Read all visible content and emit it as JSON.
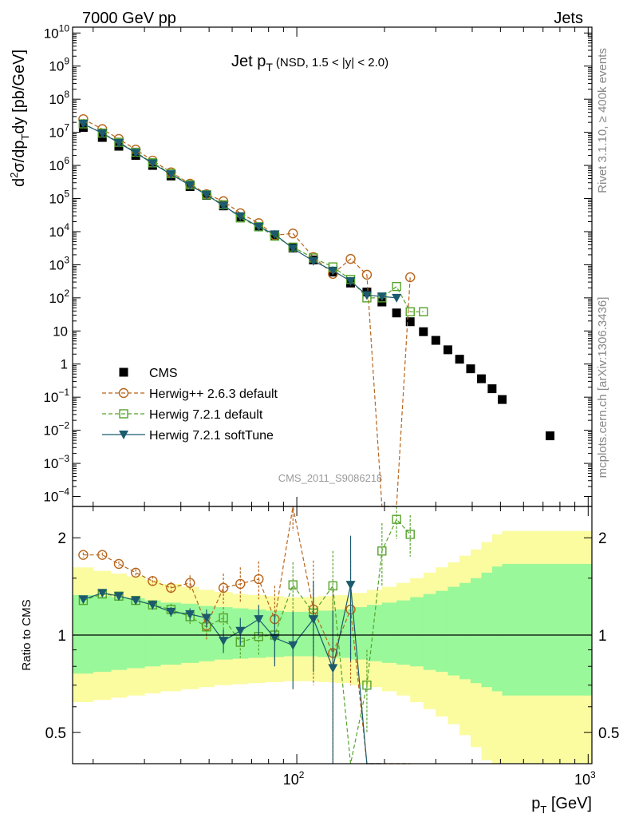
{
  "header": {
    "energy_label": "7000 GeV pp",
    "group_label": "Jets"
  },
  "side_labels": {
    "rivet": "Rivet 3.1.10, ≥ 400k events",
    "mcplots": "mcplots.cern.ch [arXiv:1306.3436]"
  },
  "watermark": "CMS_2011_S9086218",
  "chart_data": [
    {
      "type": "line",
      "panel": "main",
      "title_main": "Jet p",
      "title_sub": "T",
      "title_extra": "(NSD, 1.5 < |y| < 2.0)",
      "ylabel": "d²σ/dp_T dy [pb/GeV]",
      "xlabel": "p_T [GeV]",
      "xscale": "log",
      "yscale": "log",
      "xlim": [
        17,
        1030
      ],
      "ylim": [
        5e-05,
        15000000000
      ],
      "y_ticks": [
        {
          "v": 10000000000.0,
          "m": "10",
          "e": "10"
        },
        {
          "v": 1000000000.0,
          "m": "10",
          "e": "9"
        },
        {
          "v": 100000000.0,
          "m": "10",
          "e": "8"
        },
        {
          "v": 10000000.0,
          "m": "10",
          "e": "7"
        },
        {
          "v": 1000000.0,
          "m": "10",
          "e": "6"
        },
        {
          "v": 100000.0,
          "m": "10",
          "e": "5"
        },
        {
          "v": 10000.0,
          "m": "10",
          "e": "4"
        },
        {
          "v": 1000.0,
          "m": "10",
          "e": "3"
        },
        {
          "v": 100.0,
          "m": "10",
          "e": "2"
        },
        {
          "v": 10,
          "m": "10",
          "e": ""
        },
        {
          "v": 1,
          "m": "1",
          "e": ""
        },
        {
          "v": 0.1,
          "m": "10",
          "e": "−1"
        },
        {
          "v": 0.01,
          "m": "10",
          "e": "−2"
        },
        {
          "v": 0.001,
          "m": "10",
          "e": "−3"
        },
        {
          "v": 0.0001,
          "m": "10",
          "e": "−4"
        }
      ],
      "legend": {
        "placement": "lower-left",
        "entries": [
          {
            "label": "CMS",
            "series": "CMS"
          },
          {
            "label": "Herwig++ 2.6.3 default",
            "series": "Herwig++ 2.6.3 default"
          },
          {
            "label": "Herwig 7.2.1 default",
            "series": "Herwig 7.2.1 default"
          },
          {
            "label": "Herwig 7.2.1 softTune",
            "series": "Herwig 7.2.1 softTune"
          }
        ]
      },
      "series": [
        {
          "name": "CMS",
          "color": "#000000",
          "marker": "square-filled",
          "line": "none",
          "x": [
            18.5,
            21.5,
            24.5,
            28,
            32,
            37,
            43,
            49,
            56,
            64,
            74,
            84,
            97,
            114,
            133,
            153,
            174,
            196,
            220,
            245,
            272,
            300,
            330,
            362,
            395,
            430,
            468,
            507,
            740
          ],
          "y": [
            14000000.0,
            7000000.0,
            3800000.0,
            2000000.0,
            1000000.0,
            480000.0,
            230000.0,
            125000.0,
            60000.0,
            28000.0,
            14000.0,
            7500.0,
            3200.0,
            1400.0,
            600.0,
            280.0,
            150.0,
            75,
            35,
            19,
            9.5,
            5.2,
            2.7,
            1.4,
            0.72,
            0.36,
            0.18,
            0.085,
            0.0068
          ]
        },
        {
          "name": "Herwig++ 2.6.3 default",
          "color": "#b8651b",
          "marker": "circle-open",
          "line": "dashed",
          "x": [
            18.5,
            21.5,
            24.5,
            28,
            32,
            37,
            43,
            49,
            56,
            64,
            74,
            84,
            97,
            114,
            133,
            153,
            174,
            196,
            220,
            245
          ],
          "y": [
            25000000.0,
            12500000.0,
            6300000.0,
            3000000.0,
            1400000.0,
            620000.0,
            280000.0,
            135000.0,
            83000.0,
            36000.0,
            18000.0,
            7800.0,
            8800.0,
            1700.0,
            530.0,
            1500.0,
            500.0,
            0,
            0,
            420.0
          ]
        },
        {
          "name": "Herwig 7.2.1 default",
          "color": "#55a32a",
          "marker": "square-open",
          "line": "dashed",
          "x": [
            18.5,
            21.5,
            24.5,
            28,
            32,
            37,
            43,
            49,
            56,
            64,
            74,
            84,
            97,
            114,
            133,
            153,
            174,
            196,
            220,
            245,
            272
          ],
          "y": [
            18000000.0,
            9500000.0,
            5000000.0,
            2500000.0,
            1200000.0,
            570000.0,
            260000.0,
            130000.0,
            65000.0,
            26000.0,
            14000.0,
            7300.0,
            3400.0,
            1600.0,
            860.0,
            360.0,
            100.0,
            100.0,
            220.0,
            38,
            38
          ]
        },
        {
          "name": "Herwig 7.2.1 softTune",
          "color": "#1c5a6e",
          "marker": "triangle-down-filled",
          "line": "solid",
          "x": [
            18.5,
            21.5,
            24.5,
            28,
            32,
            37,
            43,
            49,
            56,
            64,
            74,
            84,
            97,
            114,
            133,
            153,
            174,
            196,
            220
          ],
          "y": [
            18000000.0,
            9300000.0,
            4800000.0,
            2400000.0,
            1150000.0,
            540000.0,
            250000.0,
            130000.0,
            60000.0,
            29000.0,
            14000.0,
            8300.0,
            3100.0,
            1300.0,
            660.0,
            320.0,
            120.0,
            110.0,
            100.0
          ]
        }
      ]
    },
    {
      "type": "line",
      "panel": "ratio",
      "ylabel": "Ratio to CMS",
      "xlabel": "p_T [GeV]",
      "xscale": "log",
      "yscale": "log",
      "xlim": [
        17,
        1030
      ],
      "ylim": [
        0.4,
        2.5
      ],
      "y_ticks": [
        {
          "v": 2,
          "label": "2"
        },
        {
          "v": 1,
          "label": "1"
        },
        {
          "v": 0.5,
          "label": "0.5"
        }
      ],
      "x_ticks": [
        {
          "v": 100,
          "m": "10",
          "e": "2"
        },
        {
          "v": 1000,
          "m": "10",
          "e": "3"
        }
      ],
      "bands": {
        "edges": [
          17,
          20,
          23,
          26,
          30,
          34,
          40,
          46,
          52,
          60,
          68,
          78,
          90,
          103,
          118,
          135,
          153,
          174,
          196,
          220,
          245,
          272,
          300,
          330,
          362,
          395,
          430,
          468,
          507,
          550,
          1030
        ],
        "inner_hi": [
          1.33,
          1.32,
          1.31,
          1.3,
          1.28,
          1.26,
          1.25,
          1.23,
          1.22,
          1.21,
          1.2,
          1.19,
          1.18,
          1.18,
          1.19,
          1.2,
          1.22,
          1.24,
          1.26,
          1.28,
          1.31,
          1.34,
          1.37,
          1.41,
          1.45,
          1.5,
          1.56,
          1.63,
          1.66,
          1.66
        ],
        "inner_lo": [
          0.76,
          0.77,
          0.78,
          0.79,
          0.8,
          0.81,
          0.82,
          0.83,
          0.84,
          0.845,
          0.85,
          0.855,
          0.86,
          0.86,
          0.855,
          0.85,
          0.84,
          0.83,
          0.82,
          0.81,
          0.8,
          0.78,
          0.77,
          0.75,
          0.73,
          0.71,
          0.69,
          0.67,
          0.65,
          0.65
        ],
        "outer_hi": [
          1.62,
          1.58,
          1.55,
          1.52,
          1.48,
          1.44,
          1.41,
          1.38,
          1.36,
          1.34,
          1.33,
          1.32,
          1.31,
          1.31,
          1.32,
          1.33,
          1.35,
          1.38,
          1.41,
          1.45,
          1.5,
          1.56,
          1.62,
          1.68,
          1.76,
          1.84,
          1.94,
          2.05,
          2.1,
          2.1
        ],
        "outer_lo": [
          0.62,
          0.63,
          0.64,
          0.65,
          0.66,
          0.67,
          0.68,
          0.69,
          0.7,
          0.705,
          0.71,
          0.715,
          0.72,
          0.72,
          0.715,
          0.71,
          0.7,
          0.69,
          0.67,
          0.65,
          0.62,
          0.59,
          0.56,
          0.53,
          0.49,
          0.45,
          0.41,
          0.38,
          0.36,
          0.36
        ],
        "inner_color": "#99f899",
        "outer_color": "#fbfba0"
      },
      "series": [
        {
          "name": "Herwig++ 2.6.3 default",
          "color": "#b8651b",
          "marker": "circle-open",
          "line": "dashed",
          "x": [
            18.5,
            21.5,
            24.5,
            28,
            32,
            37,
            43,
            49,
            56,
            64,
            74,
            84,
            97,
            114,
            133,
            153,
            174,
            196,
            220,
            245
          ],
          "y": [
            1.77,
            1.77,
            1.66,
            1.56,
            1.47,
            1.4,
            1.45,
            1.07,
            1.4,
            1.44,
            1.49,
            1.12,
            2.6,
            1.2,
            0.88,
            1.2,
            null,
            null,
            null,
            null
          ],
          "err": [
            0.03,
            0.03,
            0.03,
            0.04,
            0.05,
            0.06,
            0.08,
            0.1,
            0.15,
            0.18,
            0.2,
            0.3,
            0.5,
            0.5,
            0.5,
            0.5,
            0,
            0,
            0,
            0
          ]
        },
        {
          "name": "Herwig 7.2.1 default",
          "color": "#55a32a",
          "marker": "square-open",
          "line": "dashed",
          "x": [
            18.5,
            21.5,
            24.5,
            28,
            32,
            37,
            43,
            49,
            56,
            64,
            74,
            84,
            97,
            114,
            133,
            153,
            174,
            196,
            220,
            245
          ],
          "y": [
            1.28,
            1.34,
            1.32,
            1.28,
            1.24,
            1.2,
            1.14,
            1.06,
            1.13,
            0.95,
            0.99,
            1.0,
            1.43,
            1.17,
            1.42,
            null,
            0.7,
            1.82,
            2.28,
            2.05
          ],
          "err": [
            0.03,
            0.03,
            0.03,
            0.03,
            0.04,
            0.05,
            0.06,
            0.07,
            0.09,
            0.1,
            0.12,
            0.15,
            0.25,
            0.3,
            0.4,
            0,
            0.2,
            0.4,
            0.3,
            0.3
          ]
        },
        {
          "name": "Herwig 7.2.1 softTune",
          "color": "#1c5a6e",
          "marker": "triangle-down-filled",
          "line": "solid",
          "x": [
            18.5,
            21.5,
            24.5,
            28,
            32,
            37,
            43,
            49,
            56,
            64,
            74,
            84,
            97,
            114,
            133,
            153,
            174,
            196
          ],
          "y": [
            1.29,
            1.35,
            1.32,
            1.28,
            1.24,
            1.18,
            1.16,
            1.13,
            0.96,
            1.03,
            1.12,
            0.98,
            0.93,
            1.12,
            0.79,
            1.43,
            null,
            null
          ],
          "err": [
            0.03,
            0.03,
            0.03,
            0.03,
            0.04,
            0.04,
            0.05,
            0.07,
            0.08,
            0.1,
            0.12,
            0.18,
            0.25,
            0.35,
            0.4,
            0.6,
            0,
            0
          ]
        }
      ]
    }
  ]
}
